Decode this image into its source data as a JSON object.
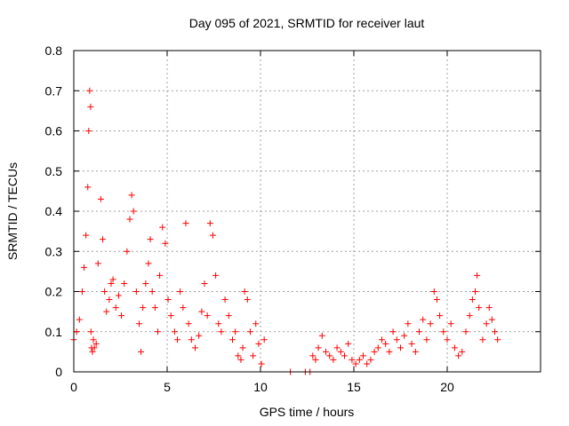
{
  "chart_data": {
    "type": "scatter",
    "title": "Day 095 of 2021, SRMTID for receiver laut",
    "xlabel": "GPS time / hours",
    "ylabel": "SRMTID / TECUs",
    "xlim": [
      0,
      25
    ],
    "ylim": [
      0,
      0.8
    ],
    "xticks": [
      0,
      5,
      10,
      15,
      20
    ],
    "xtick_labels": [
      "0",
      "5",
      "10",
      "15",
      "20"
    ],
    "yticks": [
      0,
      0.1,
      0.2,
      0.3,
      0.4,
      0.5,
      0.6,
      0.7,
      0.8
    ],
    "ytick_labels": [
      "0",
      "0.1",
      "0.2",
      "0.3",
      "0.4",
      "0.5",
      "0.6",
      "0.7",
      "0.8"
    ],
    "grid": true,
    "marker": "plus",
    "color": "#ff0000",
    "series": [
      {
        "name": "SRMTID",
        "x": [
          0.0,
          0.15,
          0.3,
          0.45,
          0.55,
          0.65,
          0.75,
          0.8,
          0.85,
          0.9,
          0.92,
          0.95,
          1.0,
          1.05,
          1.1,
          1.2,
          1.3,
          1.45,
          1.55,
          1.65,
          1.75,
          1.9,
          2.0,
          2.1,
          2.25,
          2.4,
          2.55,
          2.7,
          2.85,
          3.0,
          3.1,
          3.2,
          3.35,
          3.5,
          3.6,
          3.7,
          3.85,
          4.0,
          4.1,
          4.2,
          4.35,
          4.5,
          4.6,
          4.75,
          4.9,
          5.05,
          5.2,
          5.4,
          5.55,
          5.7,
          5.85,
          6.0,
          6.15,
          6.3,
          6.5,
          6.7,
          6.85,
          7.0,
          7.15,
          7.3,
          7.45,
          7.6,
          7.75,
          7.9,
          8.1,
          8.3,
          8.5,
          8.65,
          8.8,
          8.95,
          9.05,
          9.15,
          9.3,
          9.45,
          9.6,
          9.75,
          9.9,
          10.05,
          10.2,
          11.6,
          12.4,
          12.65,
          12.8,
          12.95,
          13.1,
          13.3,
          13.5,
          13.7,
          13.9,
          14.1,
          14.3,
          14.5,
          14.7,
          14.9,
          15.1,
          15.3,
          15.5,
          15.7,
          15.9,
          16.1,
          16.3,
          16.5,
          16.7,
          16.9,
          17.1,
          17.3,
          17.5,
          17.7,
          17.9,
          18.1,
          18.3,
          18.5,
          18.7,
          18.9,
          19.1,
          19.3,
          19.45,
          19.6,
          19.8,
          20.0,
          20.2,
          20.4,
          20.6,
          20.8,
          21.0,
          21.2,
          21.35,
          21.5,
          21.6,
          21.7,
          21.9,
          22.1,
          22.25,
          22.4,
          22.55,
          22.7
        ],
        "y": [
          0.08,
          0.1,
          0.13,
          0.2,
          0.26,
          0.34,
          0.46,
          0.6,
          0.7,
          0.66,
          0.1,
          0.06,
          0.05,
          0.08,
          0.06,
          0.07,
          0.27,
          0.43,
          0.33,
          0.2,
          0.15,
          0.18,
          0.22,
          0.23,
          0.16,
          0.19,
          0.14,
          0.22,
          0.3,
          0.38,
          0.44,
          0.4,
          0.2,
          0.12,
          0.05,
          0.16,
          0.22,
          0.27,
          0.33,
          0.2,
          0.16,
          0.1,
          0.24,
          0.36,
          0.32,
          0.18,
          0.14,
          0.1,
          0.08,
          0.2,
          0.16,
          0.37,
          0.12,
          0.08,
          0.06,
          0.09,
          0.15,
          0.22,
          0.14,
          0.37,
          0.34,
          0.24,
          0.12,
          0.1,
          0.18,
          0.14,
          0.08,
          0.1,
          0.04,
          0.03,
          0.06,
          0.2,
          0.18,
          0.1,
          0.04,
          0.12,
          0.07,
          0.02,
          0.08,
          0.0,
          0.0,
          0.0,
          0.04,
          0.03,
          0.06,
          0.09,
          0.05,
          0.04,
          0.03,
          0.06,
          0.05,
          0.04,
          0.07,
          0.03,
          0.02,
          0.03,
          0.04,
          0.02,
          0.03,
          0.05,
          0.06,
          0.08,
          0.07,
          0.05,
          0.1,
          0.08,
          0.06,
          0.09,
          0.12,
          0.07,
          0.05,
          0.1,
          0.13,
          0.08,
          0.12,
          0.2,
          0.18,
          0.14,
          0.1,
          0.08,
          0.12,
          0.06,
          0.04,
          0.05,
          0.1,
          0.14,
          0.18,
          0.2,
          0.24,
          0.16,
          0.08,
          0.12,
          0.16,
          0.13,
          0.1,
          0.08
        ]
      }
    ]
  }
}
